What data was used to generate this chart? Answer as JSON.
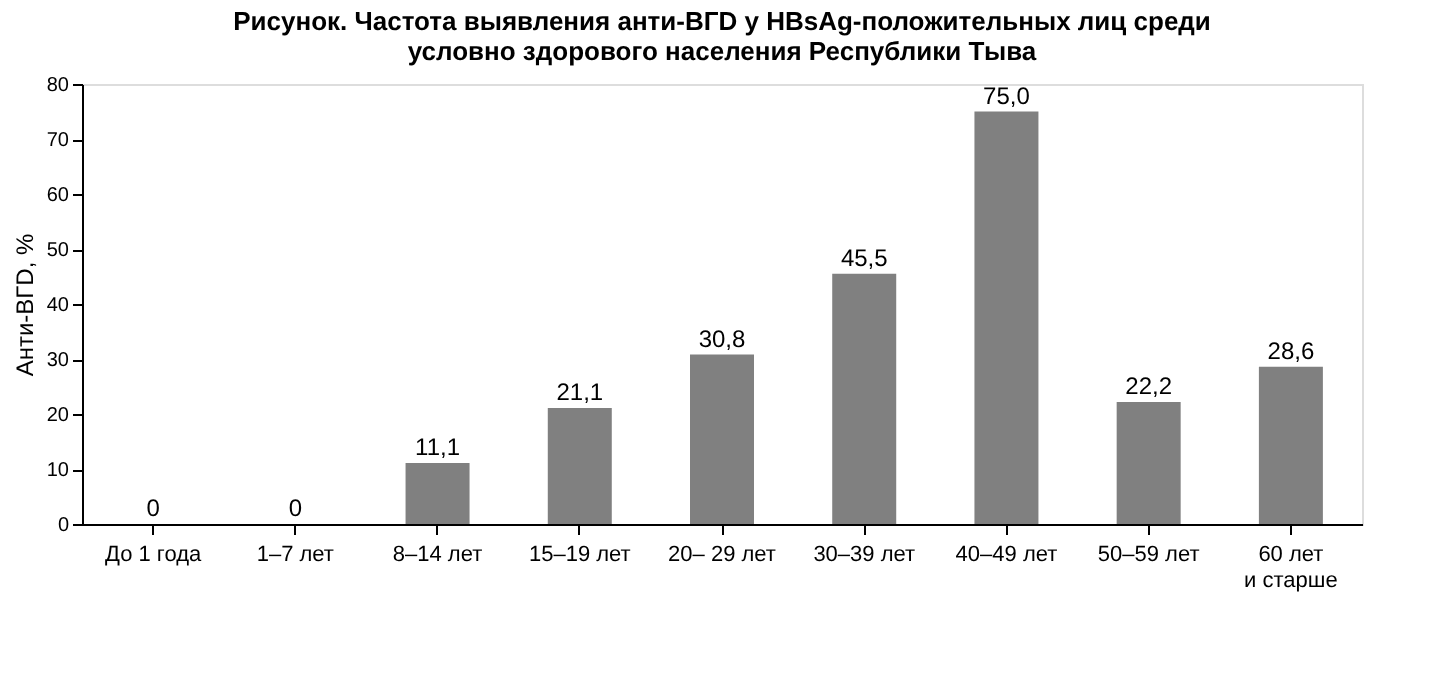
{
  "chart_data": {
    "type": "bar",
    "title": "Рисунок. Частота выявления анти-ВГD у HBsAg-положительных лиц среди  условно здорового населения Республики Тыва",
    "ylabel": "Анти-ВГD, %",
    "categories": [
      "До 1 года",
      "1–7 лет",
      "8–14 лет",
      "15–19 лет",
      "20– 29 лет",
      "30–39 лет",
      "40–49 лет",
      "50–59 лет",
      "60 лет\nи старше"
    ],
    "values": [
      0,
      0,
      11.1,
      21.1,
      30.8,
      45.5,
      75.0,
      22.2,
      28.6
    ],
    "value_labels": [
      "0",
      "0",
      "11,1",
      "21,1",
      "30,8",
      "45,5",
      "75,0",
      "22,2",
      "28,6"
    ],
    "color": "#808080",
    "ylim": [
      0,
      80
    ],
    "yticks": [
      0,
      10,
      20,
      30,
      40,
      50,
      60,
      70,
      80
    ],
    "grid": false
  }
}
